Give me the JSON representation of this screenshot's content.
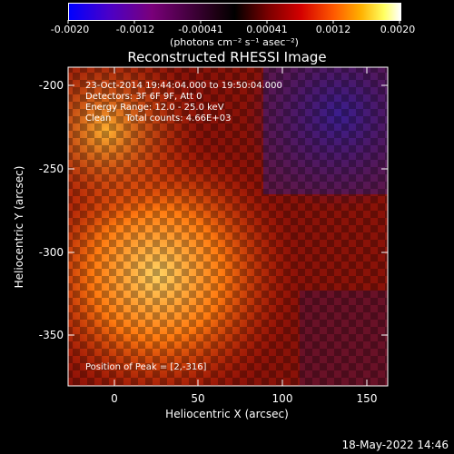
{
  "colorbar": {
    "ticks": [
      "-0.0020",
      "-0.0012",
      "-0.00041",
      "0.00041",
      "0.0012",
      "0.0020"
    ],
    "units": "(photons cm⁻² s⁻¹ asec⁻²)",
    "colors": [
      "#0000ff",
      "#4a00c8",
      "#7a007a",
      "#000000",
      "#7a0000",
      "#d40000",
      "#ff5a00",
      "#ffb000",
      "#ffff60",
      "#ffffff"
    ]
  },
  "plot": {
    "title": "Reconstructed RHESSI Image",
    "xlabel": "Heliocentric X (arcsec)",
    "ylabel": "Heliocentric Y (arcsec)",
    "x_ticks": [
      "0",
      "50",
      "100",
      "150"
    ],
    "y_ticks": [
      "-200",
      "-250",
      "-300",
      "-350"
    ],
    "x_range": [
      -28,
      162
    ],
    "y_range": [
      -380,
      -188
    ]
  },
  "annotations": {
    "line1": "23-Oct-2014 19:44:04.000 to 19:50:04.000",
    "line2": "Detectors: 3F 6F 9F, Att 0",
    "line3": "Energy Range: 12.0 - 25.0 keV",
    "line4": "Clean     Total counts: 4.66E+03",
    "peak": "Position of Peak = [2,-316]"
  },
  "footer": {
    "date": "18-May-2022 14:46"
  }
}
